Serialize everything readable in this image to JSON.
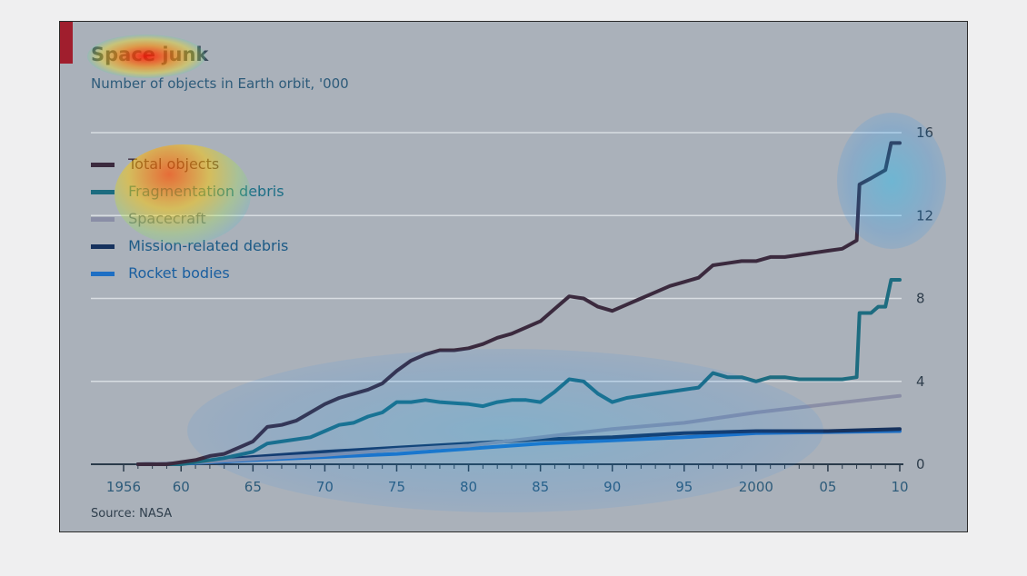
{
  "chart_data": {
    "type": "line",
    "title": "Space junk",
    "subtitle": "Number of objects in Earth orbit, '000",
    "source": "Source: NASA",
    "x_ticks": [
      {
        "x": 1956,
        "label": "1956"
      },
      {
        "x": 1960,
        "label": "60"
      },
      {
        "x": 1965,
        "label": "65"
      },
      {
        "x": 1970,
        "label": "70"
      },
      {
        "x": 1975,
        "label": "75"
      },
      {
        "x": 1980,
        "label": "80"
      },
      {
        "x": 1985,
        "label": "85"
      },
      {
        "x": 1990,
        "label": "90"
      },
      {
        "x": 1995,
        "label": "95"
      },
      {
        "x": 2000,
        "label": "2000"
      },
      {
        "x": 2005,
        "label": "05"
      },
      {
        "x": 2010,
        "label": "10"
      }
    ],
    "y_ticks": [
      0,
      4,
      8,
      12,
      16
    ],
    "xlim": [
      1956,
      2010
    ],
    "ylim": [
      0,
      16
    ],
    "grid": true,
    "legend_position": "top-left",
    "series": [
      {
        "name": "Total objects",
        "color": "#3b2a3e",
        "points": [
          [
            1957,
            0
          ],
          [
            1959,
            0
          ],
          [
            1961,
            0.2
          ],
          [
            1962,
            0.4
          ],
          [
            1963,
            0.5
          ],
          [
            1964,
            0.8
          ],
          [
            1965,
            1.1
          ],
          [
            1966,
            1.8
          ],
          [
            1967,
            1.9
          ],
          [
            1968,
            2.1
          ],
          [
            1969,
            2.5
          ],
          [
            1970,
            2.9
          ],
          [
            1971,
            3.2
          ],
          [
            1972,
            3.4
          ],
          [
            1973,
            3.6
          ],
          [
            1974,
            3.9
          ],
          [
            1975,
            4.5
          ],
          [
            1976,
            5.0
          ],
          [
            1977,
            5.3
          ],
          [
            1978,
            5.5
          ],
          [
            1979,
            5.5
          ],
          [
            1980,
            5.6
          ],
          [
            1981,
            5.8
          ],
          [
            1982,
            6.1
          ],
          [
            1983,
            6.3
          ],
          [
            1984,
            6.6
          ],
          [
            1985,
            6.9
          ],
          [
            1986,
            7.5
          ],
          [
            1987,
            8.1
          ],
          [
            1988,
            8.0
          ],
          [
            1989,
            7.6
          ],
          [
            1990,
            7.4
          ],
          [
            1991,
            7.7
          ],
          [
            1992,
            8.0
          ],
          [
            1993,
            8.3
          ],
          [
            1994,
            8.6
          ],
          [
            1995,
            8.8
          ],
          [
            1996,
            9.0
          ],
          [
            1997,
            9.6
          ],
          [
            1998,
            9.7
          ],
          [
            1999,
            9.8
          ],
          [
            2000,
            9.8
          ],
          [
            2001,
            10.0
          ],
          [
            2002,
            10.0
          ],
          [
            2003,
            10.1
          ],
          [
            2004,
            10.2
          ],
          [
            2005,
            10.3
          ],
          [
            2006,
            10.4
          ],
          [
            2007,
            10.8
          ],
          [
            2007.2,
            13.5
          ],
          [
            2008,
            13.8
          ],
          [
            2008.5,
            14.0
          ],
          [
            2009,
            14.2
          ],
          [
            2009.4,
            15.5
          ],
          [
            2010,
            15.5
          ]
        ]
      },
      {
        "name": "Fragmentation debris",
        "color": "#1d6c80",
        "points": [
          [
            1957,
            0
          ],
          [
            1960,
            0
          ],
          [
            1961,
            0.1
          ],
          [
            1963,
            0.3
          ],
          [
            1965,
            0.6
          ],
          [
            1966,
            1.0
          ],
          [
            1967,
            1.1
          ],
          [
            1969,
            1.3
          ],
          [
            1970,
            1.6
          ],
          [
            1971,
            1.9
          ],
          [
            1972,
            2.0
          ],
          [
            1973,
            2.3
          ],
          [
            1974,
            2.5
          ],
          [
            1975,
            3.0
          ],
          [
            1976,
            3.0
          ],
          [
            1977,
            3.1
          ],
          [
            1978,
            3.0
          ],
          [
            1980,
            2.9
          ],
          [
            1981,
            2.8
          ],
          [
            1982,
            3.0
          ],
          [
            1983,
            3.1
          ],
          [
            1984,
            3.1
          ],
          [
            1985,
            3.0
          ],
          [
            1986,
            3.5
          ],
          [
            1987,
            4.1
          ],
          [
            1988,
            4.0
          ],
          [
            1989,
            3.4
          ],
          [
            1990,
            3.0
          ],
          [
            1991,
            3.2
          ],
          [
            1992,
            3.3
          ],
          [
            1993,
            3.4
          ],
          [
            1994,
            3.5
          ],
          [
            1995,
            3.6
          ],
          [
            1996,
            3.7
          ],
          [
            1997,
            4.4
          ],
          [
            1998,
            4.2
          ],
          [
            1999,
            4.2
          ],
          [
            2000,
            4.0
          ],
          [
            2001,
            4.2
          ],
          [
            2002,
            4.2
          ],
          [
            2003,
            4.1
          ],
          [
            2004,
            4.1
          ],
          [
            2005,
            4.1
          ],
          [
            2006,
            4.1
          ],
          [
            2007,
            4.2
          ],
          [
            2007.2,
            7.3
          ],
          [
            2008,
            7.3
          ],
          [
            2008.5,
            7.6
          ],
          [
            2009,
            7.6
          ],
          [
            2009.4,
            8.9
          ],
          [
            2010,
            8.9
          ]
        ]
      },
      {
        "name": "Spacecraft",
        "color": "#8a8ea6",
        "points": [
          [
            1957,
            0
          ],
          [
            1960,
            0.05
          ],
          [
            1965,
            0.25
          ],
          [
            1970,
            0.45
          ],
          [
            1975,
            0.7
          ],
          [
            1980,
            0.9
          ],
          [
            1985,
            1.3
          ],
          [
            1990,
            1.7
          ],
          [
            1995,
            2.0
          ],
          [
            2000,
            2.5
          ],
          [
            2005,
            2.9
          ],
          [
            2010,
            3.3
          ]
        ]
      },
      {
        "name": "Mission-related debris",
        "color": "#16325e",
        "points": [
          [
            1957,
            0
          ],
          [
            1960,
            0.05
          ],
          [
            1965,
            0.35
          ],
          [
            1970,
            0.6
          ],
          [
            1975,
            0.8
          ],
          [
            1980,
            1.0
          ],
          [
            1985,
            1.2
          ],
          [
            1990,
            1.3
          ],
          [
            1995,
            1.5
          ],
          [
            2000,
            1.6
          ],
          [
            2005,
            1.6
          ],
          [
            2010,
            1.7
          ]
        ]
      },
      {
        "name": "Rocket bodies",
        "color": "#1e6fc4",
        "points": [
          [
            1957,
            0
          ],
          [
            1960,
            0.02
          ],
          [
            1965,
            0.2
          ],
          [
            1970,
            0.35
          ],
          [
            1975,
            0.5
          ],
          [
            1980,
            0.75
          ],
          [
            1985,
            1.0
          ],
          [
            1990,
            1.15
          ],
          [
            1995,
            1.3
          ],
          [
            2000,
            1.5
          ],
          [
            2005,
            1.55
          ],
          [
            2010,
            1.6
          ]
        ]
      }
    ]
  },
  "colors": {
    "background": "#aab1ba",
    "gridline": "#d8dde2",
    "axis": "#2a3a4a",
    "accent": "#a01e2d",
    "tick_label": "#2f3e4c",
    "legend_text": "#1c6e86"
  }
}
